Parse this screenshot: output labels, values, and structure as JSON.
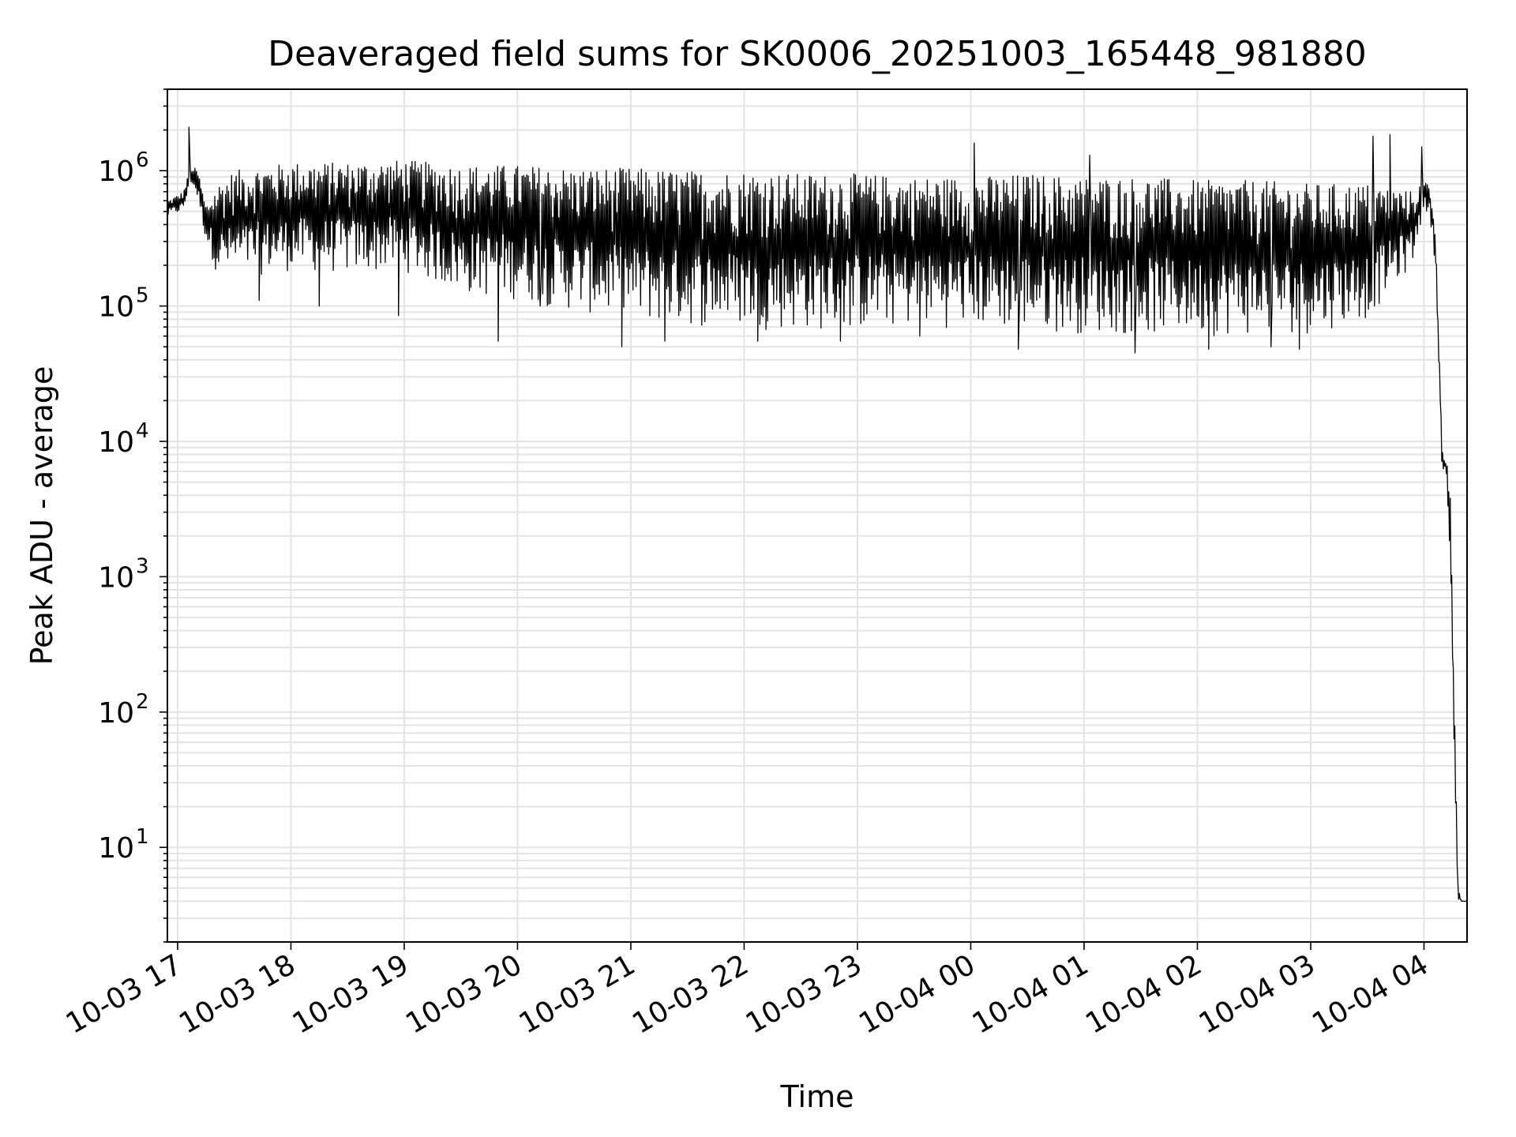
{
  "chart_data": {
    "type": "line",
    "title": "Deaveraged field sums for SK0006_20251003_165448_981880",
    "xlabel": "Time",
    "ylabel": "Peak ADU - average",
    "yscale": "log",
    "ylim": [
      2,
      4000000
    ],
    "xlim_hours": [
      16.91,
      28.38
    ],
    "grid": true,
    "x_ticks": [
      {
        "label": "10-03 17",
        "hour": 17
      },
      {
        "label": "10-03 18",
        "hour": 18
      },
      {
        "label": "10-03 19",
        "hour": 19
      },
      {
        "label": "10-03 20",
        "hour": 20
      },
      {
        "label": "10-03 21",
        "hour": 21
      },
      {
        "label": "10-03 22",
        "hour": 22
      },
      {
        "label": "10-03 23",
        "hour": 23
      },
      {
        "label": "10-04 00",
        "hour": 24
      },
      {
        "label": "10-04 01",
        "hour": 25
      },
      {
        "label": "10-04 02",
        "hour": 26
      },
      {
        "label": "10-04 03",
        "hour": 27
      },
      {
        "label": "10-04 04",
        "hour": 28
      }
    ],
    "y_ticks": [
      {
        "base": "10",
        "exp": "1",
        "value": 10
      },
      {
        "base": "10",
        "exp": "2",
        "value": 100
      },
      {
        "base": "10",
        "exp": "3",
        "value": 1000
      },
      {
        "base": "10",
        "exp": "4",
        "value": 10000
      },
      {
        "base": "10",
        "exp": "5",
        "value": 100000
      },
      {
        "base": "10",
        "exp": "6",
        "value": 1000000
      }
    ],
    "series": [
      {
        "name": "Peak ADU - average",
        "color": "#000000",
        "upper_envelope": {
          "hours": [
            16.91,
            17.05,
            17.12,
            17.18,
            17.25,
            17.35,
            17.5,
            18.0,
            18.5,
            19.0,
            19.5,
            20.0,
            20.5,
            21.0,
            21.5,
            22.0,
            22.5,
            23.0,
            23.5,
            24.0,
            24.5,
            25.0,
            25.5,
            26.0,
            26.5,
            27.0,
            27.5,
            27.9,
            28.0,
            28.05,
            28.1,
            28.13,
            28.16,
            28.2,
            28.23,
            28.26,
            28.3,
            28.33,
            28.38
          ],
          "values": [
            600000,
            700000,
            1100000,
            1000000,
            550000,
            800000,
            1000000,
            1150000,
            1150000,
            1200000,
            1100000,
            1100000,
            1050000,
            1050000,
            1000000,
            1000000,
            950000,
            950000,
            900000,
            900000,
            950000,
            900000,
            900000,
            850000,
            850000,
            800000,
            800000,
            700000,
            850000,
            800000,
            400000,
            60000,
            9000,
            8000,
            5000,
            300,
            5,
            4,
            4
          ]
        },
        "lower_envelope": {
          "hours": [
            16.91,
            17.05,
            17.12,
            17.18,
            17.25,
            17.35,
            17.5,
            18.0,
            18.5,
            19.0,
            19.5,
            20.0,
            20.5,
            21.0,
            21.5,
            22.0,
            22.5,
            23.0,
            23.5,
            24.0,
            24.5,
            25.0,
            25.5,
            26.0,
            26.5,
            27.0,
            27.5,
            27.9,
            28.0,
            28.05,
            28.1,
            28.13,
            28.16,
            28.2,
            28.23,
            28.26,
            28.3,
            28.33,
            28.38
          ],
          "values": [
            450000,
            500000,
            800000,
            600000,
            300000,
            170000,
            160000,
            180000,
            170000,
            180000,
            120000,
            110000,
            90000,
            75000,
            70000,
            68000,
            65000,
            65000,
            70000,
            68000,
            65000,
            62000,
            60000,
            60000,
            60000,
            62000,
            80000,
            200000,
            500000,
            450000,
            200000,
            40000,
            6000,
            5000,
            1000,
            50,
            4,
            4,
            4
          ]
        },
        "spikes": [
          {
            "hour": 17.1,
            "value": 2100000
          },
          {
            "hour": 17.72,
            "value": 110000
          },
          {
            "hour": 18.25,
            "value": 100000
          },
          {
            "hour": 18.95,
            "value": 85000
          },
          {
            "hour": 19.83,
            "value": 55000
          },
          {
            "hour": 20.2,
            "value": 100000
          },
          {
            "hour": 20.92,
            "value": 50000
          },
          {
            "hour": 21.3,
            "value": 55000
          },
          {
            "hour": 22.12,
            "value": 55000
          },
          {
            "hour": 22.85,
            "value": 55000
          },
          {
            "hour": 23.55,
            "value": 60000
          },
          {
            "hour": 24.03,
            "value": 1600000
          },
          {
            "hour": 24.42,
            "value": 48000
          },
          {
            "hour": 25.05,
            "value": 1300000
          },
          {
            "hour": 25.45,
            "value": 45000
          },
          {
            "hour": 26.1,
            "value": 48000
          },
          {
            "hour": 26.65,
            "value": 50000
          },
          {
            "hour": 26.9,
            "value": 48000
          },
          {
            "hour": 27.55,
            "value": 1800000
          },
          {
            "hour": 27.7,
            "value": 1850000
          },
          {
            "hour": 27.98,
            "value": 1500000
          }
        ]
      }
    ]
  }
}
